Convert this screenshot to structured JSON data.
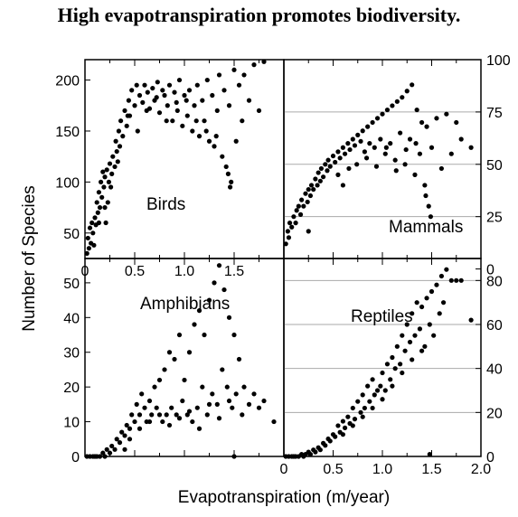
{
  "title": "High evapotranspiration promotes biodiversity.",
  "xlabel": "Evapotranspiration (m/year)",
  "ylabel": "Number of Species",
  "chart_data": [
    {
      "type": "scatter",
      "panel": "top-left",
      "label": "Birds",
      "xlim": [
        0,
        2.0
      ],
      "ylim": [
        25,
        220
      ],
      "yticks": [
        50,
        100,
        150,
        200
      ],
      "y_axis_side": "left",
      "xticks": [
        0,
        0.5,
        1.0,
        1.5
      ],
      "points": [
        [
          0.02,
          30
        ],
        [
          0.03,
          45
        ],
        [
          0.04,
          35
        ],
        [
          0.05,
          55
        ],
        [
          0.06,
          40
        ],
        [
          0.07,
          60
        ],
        [
          0.08,
          50
        ],
        [
          0.09,
          38
        ],
        [
          0.1,
          65
        ],
        [
          0.11,
          58
        ],
        [
          0.12,
          80
        ],
        [
          0.13,
          70
        ],
        [
          0.14,
          90
        ],
        [
          0.15,
          75
        ],
        [
          0.16,
          100
        ],
        [
          0.17,
          85
        ],
        [
          0.18,
          110
        ],
        [
          0.19,
          95
        ],
        [
          0.2,
          105
        ],
        [
          0.21,
          60
        ],
        [
          0.22,
          112
        ],
        [
          0.23,
          80
        ],
        [
          0.24,
          100
        ],
        [
          0.25,
          118
        ],
        [
          0.27,
          108
        ],
        [
          0.28,
          125
        ],
        [
          0.3,
          115
        ],
        [
          0.31,
          140
        ],
        [
          0.32,
          130
        ],
        [
          0.34,
          150
        ],
        [
          0.35,
          135
        ],
        [
          0.36,
          160
        ],
        [
          0.38,
          145
        ],
        [
          0.4,
          170
        ],
        [
          0.42,
          155
        ],
        [
          0.44,
          180
        ],
        [
          0.45,
          165
        ],
        [
          0.47,
          190
        ],
        [
          0.5,
          175
        ],
        [
          0.52,
          195
        ],
        [
          0.55,
          185
        ],
        [
          0.58,
          178
        ],
        [
          0.6,
          195
        ],
        [
          0.63,
          188
        ],
        [
          0.65,
          172
        ],
        [
          0.68,
          192
        ],
        [
          0.7,
          180
        ],
        [
          0.73,
          198
        ],
        [
          0.75,
          168
        ],
        [
          0.78,
          190
        ],
        [
          0.8,
          185
        ],
        [
          0.83,
          175
        ],
        [
          0.85,
          195
        ],
        [
          0.88,
          160
        ],
        [
          0.9,
          188
        ],
        [
          0.93,
          170
        ],
        [
          0.95,
          200
        ],
        [
          0.98,
          155
        ],
        [
          1.0,
          185
        ],
        [
          1.03,
          165
        ],
        [
          1.05,
          190
        ],
        [
          1.08,
          150
        ],
        [
          1.1,
          175
        ],
        [
          1.13,
          195
        ],
        [
          1.15,
          145
        ],
        [
          1.18,
          180
        ],
        [
          1.2,
          160
        ],
        [
          1.23,
          200
        ],
        [
          1.25,
          140
        ],
        [
          1.28,
          185
        ],
        [
          1.3,
          135
        ],
        [
          1.33,
          170
        ],
        [
          1.35,
          205
        ],
        [
          1.38,
          125
        ],
        [
          1.4,
          190
        ],
        [
          1.42,
          115
        ],
        [
          1.45,
          175
        ],
        [
          1.47,
          100
        ],
        [
          1.5,
          210
        ],
        [
          1.52,
          140
        ],
        [
          1.55,
          195
        ],
        [
          1.58,
          160
        ],
        [
          1.6,
          205
        ],
        [
          1.65,
          180
        ],
        [
          1.7,
          215
        ],
        [
          1.75,
          170
        ],
        [
          1.8,
          218
        ],
        [
          0.14,
          60
        ],
        [
          0.2,
          75
        ],
        [
          0.26,
          95
        ],
        [
          0.33,
          120
        ],
        [
          0.43,
          165
        ],
        [
          0.53,
          150
        ],
        [
          0.62,
          170
        ],
        [
          0.72,
          183
        ],
        [
          0.82,
          160
        ],
        [
          0.92,
          178
        ],
        [
          1.02,
          180
        ],
        [
          1.12,
          160
        ],
        [
          1.22,
          150
        ],
        [
          1.32,
          145
        ],
        [
          1.44,
          108
        ],
        [
          1.46,
          95
        ]
      ]
    },
    {
      "type": "scatter",
      "panel": "top-right",
      "label": "Mammals",
      "xlim": [
        0,
        2.0
      ],
      "ylim": [
        5,
        100
      ],
      "yticks": [
        0,
        25,
        50,
        75,
        100
      ],
      "y_axis_side": "right",
      "points": [
        [
          0.02,
          12
        ],
        [
          0.04,
          18
        ],
        [
          0.05,
          15
        ],
        [
          0.06,
          22
        ],
        [
          0.08,
          20
        ],
        [
          0.1,
          25
        ],
        [
          0.12,
          22
        ],
        [
          0.13,
          28
        ],
        [
          0.15,
          30
        ],
        [
          0.17,
          26
        ],
        [
          0.18,
          33
        ],
        [
          0.2,
          30
        ],
        [
          0.22,
          36
        ],
        [
          0.24,
          32
        ],
        [
          0.25,
          38
        ],
        [
          0.27,
          35
        ],
        [
          0.28,
          40
        ],
        [
          0.3,
          38
        ],
        [
          0.32,
          43
        ],
        [
          0.34,
          40
        ],
        [
          0.35,
          46
        ],
        [
          0.37,
          42
        ],
        [
          0.38,
          48
        ],
        [
          0.4,
          44
        ],
        [
          0.42,
          50
        ],
        [
          0.44,
          47
        ],
        [
          0.45,
          52
        ],
        [
          0.47,
          49
        ],
        [
          0.5,
          54
        ],
        [
          0.52,
          51
        ],
        [
          0.55,
          56
        ],
        [
          0.57,
          53
        ],
        [
          0.6,
          58
        ],
        [
          0.62,
          55
        ],
        [
          0.65,
          60
        ],
        [
          0.67,
          57
        ],
        [
          0.7,
          62
        ],
        [
          0.72,
          59
        ],
        [
          0.75,
          64
        ],
        [
          0.78,
          61
        ],
        [
          0.8,
          66
        ],
        [
          0.82,
          56
        ],
        [
          0.85,
          68
        ],
        [
          0.87,
          60
        ],
        [
          0.9,
          70
        ],
        [
          0.92,
          58
        ],
        [
          0.95,
          72
        ],
        [
          0.98,
          62
        ],
        [
          1.0,
          74
        ],
        [
          1.03,
          55
        ],
        [
          1.05,
          76
        ],
        [
          1.08,
          60
        ],
        [
          1.1,
          78
        ],
        [
          1.13,
          52
        ],
        [
          1.15,
          80
        ],
        [
          1.18,
          65
        ],
        [
          1.2,
          82
        ],
        [
          1.23,
          50
        ],
        [
          1.25,
          85
        ],
        [
          1.28,
          62
        ],
        [
          1.3,
          88
        ],
        [
          1.33,
          45
        ],
        [
          1.35,
          76
        ],
        [
          1.38,
          55
        ],
        [
          1.4,
          70
        ],
        [
          1.43,
          40
        ],
        [
          1.45,
          68
        ],
        [
          1.5,
          58
        ],
        [
          1.55,
          72
        ],
        [
          1.6,
          48
        ],
        [
          1.65,
          74
        ],
        [
          1.7,
          55
        ],
        [
          1.75,
          70
        ],
        [
          1.8,
          62
        ],
        [
          1.9,
          58
        ],
        [
          0.25,
          18
        ],
        [
          0.55,
          45
        ],
        [
          0.6,
          40
        ],
        [
          0.66,
          48
        ],
        [
          0.74,
          50
        ],
        [
          0.84,
          53
        ],
        [
          0.94,
          49
        ],
        [
          1.04,
          58
        ],
        [
          1.14,
          47
        ],
        [
          1.24,
          57
        ],
        [
          1.34,
          60
        ],
        [
          1.44,
          35
        ],
        [
          1.47,
          30
        ],
        [
          1.49,
          25
        ]
      ]
    },
    {
      "type": "scatter",
      "panel": "bottom-left",
      "label": "Amphibians",
      "xlim": [
        0,
        2.0
      ],
      "ylim": [
        0,
        57
      ],
      "yticks": [
        0,
        10,
        20,
        30,
        40,
        50
      ],
      "y_axis_side": "left",
      "points": [
        [
          0.02,
          0
        ],
        [
          0.05,
          0
        ],
        [
          0.08,
          0
        ],
        [
          0.1,
          0
        ],
        [
          0.12,
          0
        ],
        [
          0.15,
          0
        ],
        [
          0.18,
          1
        ],
        [
          0.2,
          0
        ],
        [
          0.22,
          2
        ],
        [
          0.25,
          1
        ],
        [
          0.27,
          3
        ],
        [
          0.3,
          2
        ],
        [
          0.32,
          5
        ],
        [
          0.35,
          4
        ],
        [
          0.37,
          7
        ],
        [
          0.4,
          6
        ],
        [
          0.42,
          9
        ],
        [
          0.45,
          8
        ],
        [
          0.47,
          12
        ],
        [
          0.5,
          10
        ],
        [
          0.52,
          15
        ],
        [
          0.55,
          12
        ],
        [
          0.57,
          18
        ],
        [
          0.6,
          14
        ],
        [
          0.62,
          10
        ],
        [
          0.65,
          16
        ],
        [
          0.67,
          12
        ],
        [
          0.7,
          20
        ],
        [
          0.72,
          14
        ],
        [
          0.75,
          22
        ],
        [
          0.78,
          10
        ],
        [
          0.8,
          25
        ],
        [
          0.82,
          12
        ],
        [
          0.85,
          30
        ],
        [
          0.87,
          14
        ],
        [
          0.9,
          28
        ],
        [
          0.92,
          12
        ],
        [
          0.95,
          35
        ],
        [
          0.98,
          16
        ],
        [
          1.0,
          22
        ],
        [
          1.03,
          12
        ],
        [
          1.05,
          30
        ],
        [
          1.08,
          10
        ],
        [
          1.1,
          38
        ],
        [
          1.13,
          14
        ],
        [
          1.15,
          42
        ],
        [
          1.18,
          20
        ],
        [
          1.2,
          35
        ],
        [
          1.23,
          12
        ],
        [
          1.25,
          45
        ],
        [
          1.28,
          18
        ],
        [
          1.3,
          50
        ],
        [
          1.33,
          15
        ],
        [
          1.35,
          55
        ],
        [
          1.38,
          25
        ],
        [
          1.4,
          48
        ],
        [
          1.43,
          20
        ],
        [
          1.45,
          40
        ],
        [
          1.48,
          14
        ],
        [
          1.5,
          35
        ],
        [
          1.52,
          18
        ],
        [
          1.55,
          28
        ],
        [
          1.58,
          12
        ],
        [
          1.6,
          20
        ],
        [
          1.65,
          15
        ],
        [
          1.7,
          18
        ],
        [
          1.75,
          14
        ],
        [
          1.8,
          16
        ],
        [
          1.9,
          10
        ],
        [
          0.4,
          2
        ],
        [
          0.45,
          5
        ],
        [
          0.55,
          8
        ],
        [
          0.65,
          10
        ],
        [
          0.75,
          12
        ],
        [
          0.85,
          9
        ],
        [
          0.95,
          11
        ],
        [
          1.05,
          13
        ],
        [
          1.15,
          8
        ],
        [
          1.25,
          15
        ],
        [
          1.35,
          11
        ],
        [
          1.45,
          16
        ],
        [
          1.5,
          0
        ]
      ]
    },
    {
      "type": "scatter",
      "panel": "bottom-right",
      "label": "Reptiles",
      "xlim": [
        0,
        2.0
      ],
      "ylim": [
        0,
        90
      ],
      "yticks": [
        0,
        20,
        40,
        60,
        80
      ],
      "y_axis_side": "right",
      "xticks": [
        0,
        0.5,
        1.0,
        1.5,
        2.0
      ],
      "points": [
        [
          0.02,
          0
        ],
        [
          0.05,
          0
        ],
        [
          0.08,
          0
        ],
        [
          0.1,
          0
        ],
        [
          0.12,
          0
        ],
        [
          0.15,
          0
        ],
        [
          0.18,
          1
        ],
        [
          0.2,
          0
        ],
        [
          0.22,
          1
        ],
        [
          0.25,
          2
        ],
        [
          0.27,
          1
        ],
        [
          0.3,
          3
        ],
        [
          0.32,
          2
        ],
        [
          0.35,
          4
        ],
        [
          0.37,
          3
        ],
        [
          0.4,
          6
        ],
        [
          0.42,
          5
        ],
        [
          0.45,
          8
        ],
        [
          0.47,
          7
        ],
        [
          0.5,
          10
        ],
        [
          0.52,
          9
        ],
        [
          0.55,
          14
        ],
        [
          0.57,
          11
        ],
        [
          0.6,
          16
        ],
        [
          0.62,
          13
        ],
        [
          0.65,
          18
        ],
        [
          0.67,
          15
        ],
        [
          0.7,
          22
        ],
        [
          0.72,
          17
        ],
        [
          0.75,
          25
        ],
        [
          0.78,
          20
        ],
        [
          0.8,
          28
        ],
        [
          0.82,
          22
        ],
        [
          0.85,
          32
        ],
        [
          0.87,
          25
        ],
        [
          0.9,
          35
        ],
        [
          0.92,
          28
        ],
        [
          0.95,
          30
        ],
        [
          0.98,
          32
        ],
        [
          1.0,
          38
        ],
        [
          1.03,
          30
        ],
        [
          1.05,
          42
        ],
        [
          1.08,
          35
        ],
        [
          1.1,
          45
        ],
        [
          1.13,
          40
        ],
        [
          1.15,
          50
        ],
        [
          1.18,
          42
        ],
        [
          1.2,
          55
        ],
        [
          1.23,
          48
        ],
        [
          1.25,
          60
        ],
        [
          1.28,
          52
        ],
        [
          1.3,
          65
        ],
        [
          1.33,
          55
        ],
        [
          1.35,
          70
        ],
        [
          1.38,
          58
        ],
        [
          1.4,
          68
        ],
        [
          1.43,
          50
        ],
        [
          1.45,
          72
        ],
        [
          1.48,
          60
        ],
        [
          1.5,
          75
        ],
        [
          1.52,
          55
        ],
        [
          1.55,
          78
        ],
        [
          1.58,
          65
        ],
        [
          1.6,
          82
        ],
        [
          1.62,
          70
        ],
        [
          1.65,
          85
        ],
        [
          1.7,
          80
        ],
        [
          1.75,
          80
        ],
        [
          1.8,
          80
        ],
        [
          1.9,
          62
        ],
        [
          0.6,
          10
        ],
        [
          0.7,
          14
        ],
        [
          0.8,
          18
        ],
        [
          0.9,
          22
        ],
        [
          1.0,
          26
        ],
        [
          1.1,
          32
        ],
        [
          1.2,
          38
        ],
        [
          1.3,
          44
        ],
        [
          1.4,
          48
        ],
        [
          1.48,
          1
        ]
      ]
    }
  ]
}
